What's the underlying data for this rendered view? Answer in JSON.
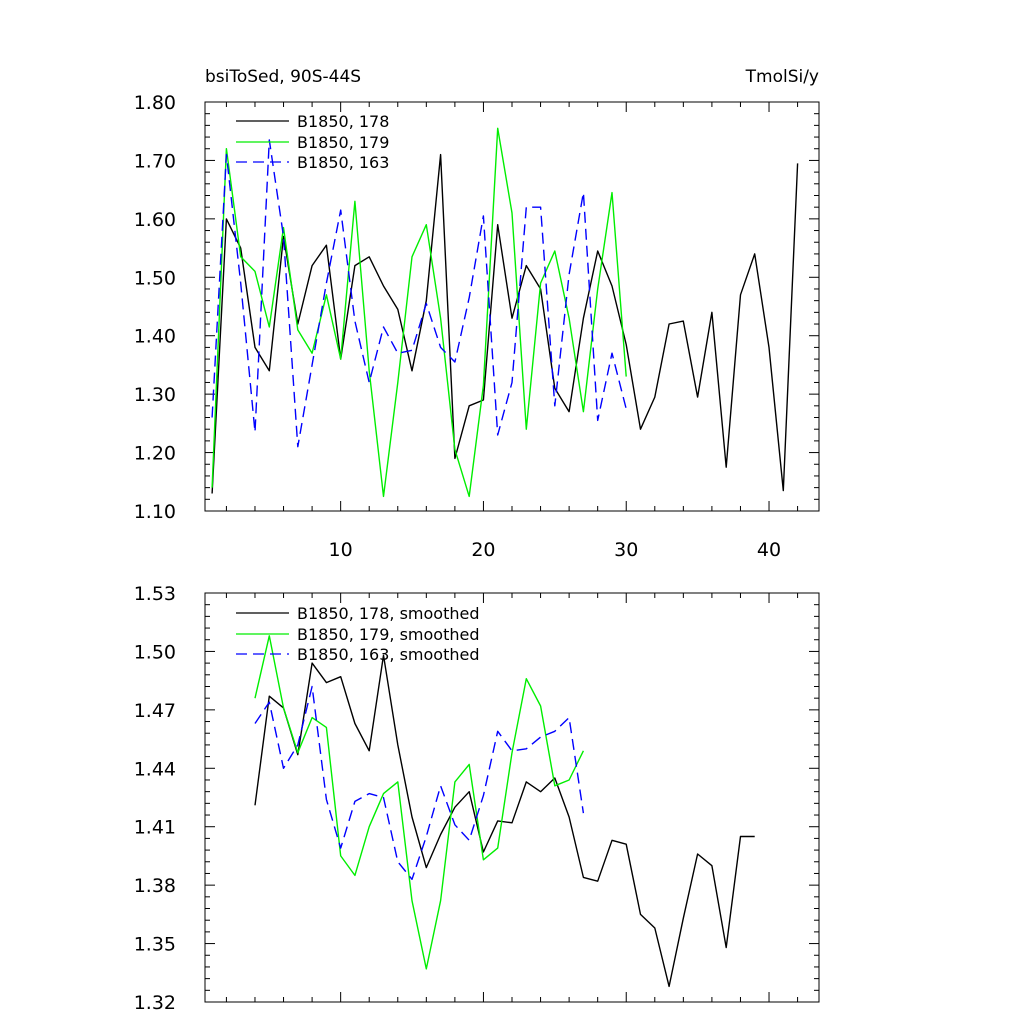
{
  "chart_data": [
    {
      "type": "line",
      "title_left": "bsiToSed, 90S-44S",
      "title_right": "TmolSi/y",
      "xlim": [
        0.5,
        43.5
      ],
      "ylim": [
        1.1,
        1.8
      ],
      "yticks": [
        "1.10",
        "1.20",
        "1.30",
        "1.40",
        "1.50",
        "1.60",
        "1.70",
        "1.80"
      ],
      "xticks": [
        "10",
        "20",
        "30",
        "40"
      ],
      "xtick_values": [
        10,
        20,
        30,
        40
      ],
      "ytick_values": [
        1.1,
        1.2,
        1.3,
        1.4,
        1.5,
        1.6,
        1.7,
        1.8
      ],
      "show_xtick_labels": true,
      "series": [
        {
          "name": "B1850, 178",
          "color": "#000000",
          "dash": "solid",
          "x": [
            1,
            2,
            3,
            4,
            5,
            6,
            7,
            8,
            9,
            10,
            11,
            12,
            13,
            14,
            15,
            16,
            17,
            18,
            19,
            20,
            21,
            22,
            23,
            24,
            25,
            26,
            27,
            28,
            29,
            30,
            31,
            32,
            33,
            34,
            35,
            36,
            37,
            38,
            39,
            40,
            41,
            42
          ],
          "values": [
            1.13,
            1.6,
            1.55,
            1.38,
            1.34,
            1.57,
            1.42,
            1.52,
            1.555,
            1.36,
            1.52,
            1.535,
            1.485,
            1.445,
            1.34,
            1.46,
            1.71,
            1.19,
            1.28,
            1.29,
            1.59,
            1.43,
            1.52,
            1.48,
            1.31,
            1.27,
            1.43,
            1.545,
            1.485,
            1.385,
            1.24,
            1.295,
            1.42,
            1.425,
            1.295,
            1.44,
            1.175,
            1.47,
            1.54,
            1.38,
            1.135,
            1.695
          ]
        },
        {
          "name": "B1850, 179",
          "color": "#00ee00",
          "dash": "solid",
          "x": [
            1,
            2,
            3,
            4,
            5,
            6,
            7,
            8,
            9,
            10,
            11,
            12,
            13,
            14,
            15,
            16,
            17,
            18,
            19,
            20,
            21,
            22,
            23,
            24,
            25,
            26,
            27,
            28,
            29,
            30
          ],
          "values": [
            1.14,
            1.72,
            1.535,
            1.51,
            1.415,
            1.585,
            1.41,
            1.37,
            1.47,
            1.36,
            1.63,
            1.34,
            1.125,
            1.32,
            1.535,
            1.59,
            1.43,
            1.205,
            1.125,
            1.315,
            1.755,
            1.61,
            1.24,
            1.49,
            1.545,
            1.43,
            1.27,
            1.48,
            1.645,
            1.33
          ]
        },
        {
          "name": "B1850, 163",
          "color": "#0000ff",
          "dash": "dashed",
          "x": [
            1,
            2,
            3,
            4,
            5,
            6,
            7,
            8,
            9,
            10,
            11,
            12,
            13,
            14,
            15,
            16,
            17,
            18,
            19,
            20,
            21,
            22,
            23,
            24,
            25,
            26,
            27,
            28,
            29,
            30
          ],
          "values": [
            1.26,
            1.71,
            1.49,
            1.235,
            1.735,
            1.57,
            1.21,
            1.35,
            1.49,
            1.615,
            1.425,
            1.32,
            1.415,
            1.37,
            1.375,
            1.455,
            1.38,
            1.355,
            1.465,
            1.605,
            1.23,
            1.32,
            1.62,
            1.62,
            1.28,
            1.505,
            1.645,
            1.255,
            1.37,
            1.275
          ]
        }
      ]
    },
    {
      "type": "line",
      "title_left": "",
      "title_right": "",
      "xlim": [
        0.5,
        43.5
      ],
      "ylim": [
        1.32,
        1.53
      ],
      "yticks": [
        "1.32",
        "1.35",
        "1.38",
        "1.41",
        "1.44",
        "1.47",
        "1.50",
        "1.53"
      ],
      "ytick_values": [
        1.32,
        1.35,
        1.38,
        1.41,
        1.44,
        1.47,
        1.5,
        1.53
      ],
      "xticks": [
        "10",
        "20",
        "30",
        "40"
      ],
      "xtick_values": [
        10,
        20,
        30,
        40
      ],
      "show_xtick_labels": false,
      "series": [
        {
          "name": "B1850, 178, smoothed",
          "color": "#000000",
          "dash": "solid",
          "x": [
            4,
            5,
            6,
            7,
            8,
            9,
            10,
            11,
            12,
            13,
            14,
            15,
            16,
            17,
            18,
            19,
            20,
            21,
            22,
            23,
            24,
            25,
            26,
            27,
            28,
            29,
            30,
            31,
            32,
            33,
            34,
            35,
            36,
            37,
            38,
            39
          ],
          "values": [
            1.421,
            1.477,
            1.471,
            1.447,
            1.494,
            1.484,
            1.487,
            1.463,
            1.449,
            1.498,
            1.452,
            1.415,
            1.389,
            1.406,
            1.42,
            1.428,
            1.397,
            1.413,
            1.412,
            1.433,
            1.428,
            1.435,
            1.415,
            1.384,
            1.382,
            1.403,
            1.401,
            1.365,
            1.358,
            1.328,
            1.363,
            1.396,
            1.39,
            1.348,
            1.405,
            1.405
          ]
        },
        {
          "name": "B1850, 179, smoothed",
          "color": "#00ee00",
          "dash": "solid",
          "x": [
            4,
            5,
            6,
            7,
            8,
            9,
            10,
            11,
            12,
            13,
            14,
            15,
            16,
            17,
            18,
            19,
            20,
            21,
            22,
            23,
            24,
            25,
            26,
            27
          ],
          "values": [
            1.476,
            1.508,
            1.471,
            1.448,
            1.466,
            1.461,
            1.395,
            1.385,
            1.41,
            1.427,
            1.433,
            1.372,
            1.337,
            1.372,
            1.433,
            1.442,
            1.393,
            1.399,
            1.448,
            1.486,
            1.472,
            1.431,
            1.434,
            1.449
          ]
        },
        {
          "name": "B1850, 163, smoothed",
          "color": "#0000ff",
          "dash": "dashed",
          "x": [
            4,
            5,
            6,
            7,
            8,
            9,
            10,
            11,
            12,
            13,
            14,
            15,
            16,
            17,
            18,
            19,
            20,
            21,
            22,
            23,
            24,
            25,
            26,
            27
          ],
          "values": [
            1.463,
            1.474,
            1.44,
            1.452,
            1.482,
            1.424,
            1.399,
            1.423,
            1.427,
            1.425,
            1.392,
            1.383,
            1.405,
            1.431,
            1.411,
            1.403,
            1.426,
            1.459,
            1.449,
            1.45,
            1.456,
            1.459,
            1.466,
            1.417
          ]
        }
      ]
    }
  ]
}
